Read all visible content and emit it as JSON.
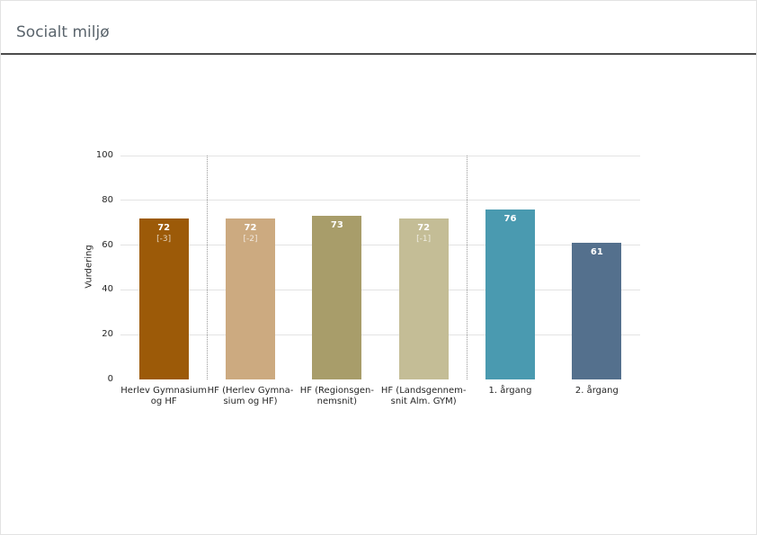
{
  "header": {
    "title": "Socialt miljø"
  },
  "chart_data": {
    "type": "bar",
    "title": "Socialt miljø",
    "xlabel": "",
    "ylabel": "Vurdering",
    "ylim": [
      0,
      100
    ],
    "yticks": [
      0,
      20,
      40,
      60,
      80,
      100
    ],
    "grid": "horizontal",
    "legend": "none",
    "categories": [
      "Herlev Gymnasium og HF",
      "HF (Herlev Gymnasium og HF)",
      "HF (Regionsgennemsnit)",
      "HF (Landsgennemsnit Alm. GYM)",
      "1. årgang",
      "2. årgang"
    ],
    "category_lines": [
      [
        "Herlev Gymnasium",
        "og HF"
      ],
      [
        "HF (Herlev Gymna-",
        "sium og HF)"
      ],
      [
        "HF (Regionsgen-",
        "nemsnit)"
      ],
      [
        "HF (Landsgennem-",
        "snit Alm. GYM)"
      ],
      [
        "1. årgang"
      ],
      [
        "2. årgang"
      ]
    ],
    "values": [
      72,
      72,
      73,
      72,
      76,
      61
    ],
    "annotations": [
      "[-3]",
      "[-2]",
      null,
      "[-1]",
      null,
      null
    ],
    "colors": [
      "#9c5a08",
      "#ccaa80",
      "#a89d6a",
      "#c4bd96",
      "#4a9ab0",
      "#54708d"
    ],
    "value_label_color": "#ffffff",
    "separators_after_index": [
      0,
      3
    ]
  }
}
